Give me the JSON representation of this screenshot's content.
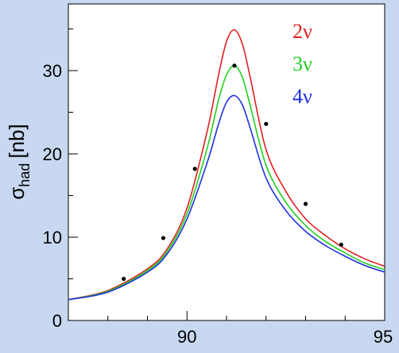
{
  "chart_data": {
    "type": "line",
    "title": "",
    "xlabel": "",
    "ylabel": "σ_had [nb]",
    "ylabel_main": "σ",
    "ylabel_sub": "had",
    "ylabel_unit": "[nb]",
    "xlim": [
      87,
      95
    ],
    "ylim": [
      0,
      38
    ],
    "x_ticks": [
      90,
      95
    ],
    "y_ticks": [
      0,
      10,
      20,
      30
    ],
    "grid": false,
    "legend_position": "top-right",
    "series": [
      {
        "name": "2ν",
        "color": "#e02020",
        "x": [
          87,
          88,
          89,
          89.5,
          90,
          90.5,
          90.8,
          91,
          91.2,
          91.4,
          91.6,
          92,
          92.5,
          93,
          93.5,
          94,
          94.5,
          95
        ],
        "y": [
          2.5,
          3.6,
          6.2,
          8.6,
          13.5,
          22.5,
          29.5,
          33.5,
          34.9,
          33.2,
          29.2,
          20.5,
          15.5,
          12.2,
          10.2,
          8.6,
          7.4,
          6.5
        ]
      },
      {
        "name": "3ν",
        "color": "#20d020",
        "x": [
          87,
          88,
          89,
          89.5,
          90,
          90.5,
          90.8,
          91,
          91.2,
          91.4,
          91.6,
          92,
          92.5,
          93,
          93.5,
          94,
          94.5,
          95
        ],
        "y": [
          2.5,
          3.5,
          6.0,
          8.3,
          12.8,
          20.5,
          26.5,
          29.5,
          30.6,
          29.2,
          25.8,
          18.6,
          14.2,
          11.4,
          9.5,
          8.1,
          6.9,
          6.1
        ]
      },
      {
        "name": "4ν",
        "color": "#2030e0",
        "x": [
          87,
          88,
          89,
          89.5,
          90,
          90.5,
          90.8,
          91,
          91.2,
          91.4,
          91.6,
          92,
          92.5,
          93,
          93.5,
          94,
          94.5,
          95
        ],
        "y": [
          2.5,
          3.4,
          5.8,
          8.0,
          12.2,
          18.8,
          23.6,
          26.2,
          27.0,
          25.9,
          23.1,
          17.1,
          13.2,
          10.7,
          9.0,
          7.7,
          6.6,
          5.8
        ]
      }
    ],
    "points": {
      "x": [
        88.4,
        89.4,
        90.2,
        91.2,
        92.0,
        93.0,
        93.9
      ],
      "y": [
        5.0,
        9.9,
        18.2,
        30.6,
        23.6,
        14.0,
        9.1
      ]
    }
  }
}
